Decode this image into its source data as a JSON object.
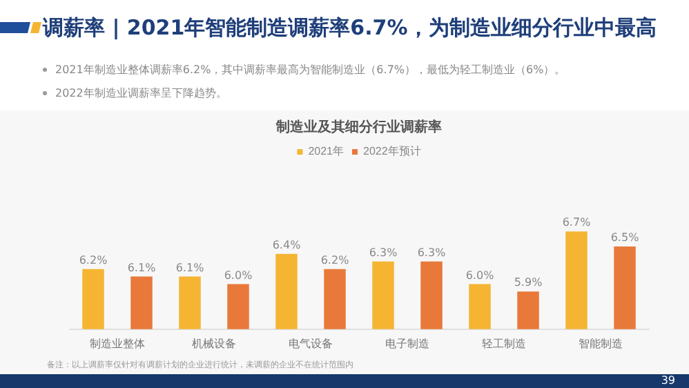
{
  "chart_data": {
    "type": "bar",
    "title": "调薪率 | 2021年智能制造调薪率6.7%，为制造业细分行业中最高",
    "subtitle": "制造业及其细分行业调薪率",
    "categories": [
      "制造业整体",
      "机械设备",
      "电气设备",
      "电子制造",
      "轻工制造",
      "智能制造"
    ],
    "series": [
      {
        "name": "2021年",
        "color": "#f5b533",
        "values": [
          6.2,
          6.1,
          6.4,
          6.3,
          6.0,
          6.7
        ],
        "value_labels": [
          "6.2%",
          "6.1%",
          "6.4%",
          "6.3%",
          "6.0%",
          "6.7%"
        ]
      },
      {
        "name": "2022年预计",
        "color": "#e8793a",
        "values": [
          6.1,
          6.0,
          6.2,
          6.3,
          5.9,
          6.5
        ],
        "value_labels": [
          "6.1%",
          "6.0%",
          "6.2%",
          "6.3%",
          "5.9%",
          "6.5%"
        ]
      }
    ],
    "tick_labels": "x",
    "grid": false,
    "legend": "top",
    "annotations": [
      "2021年制造业整体调薪率6.2%，其中调薪率最高为智能制造业（6.7%），最低为轻工制造业（6%）。",
      "2022年制造业调薪率呈下降趋势。",
      "备注：以上调薪率仅针对有调薪计划的企业进行统计，未调薪的企业不在统计范围内",
      "39"
    ]
  }
}
